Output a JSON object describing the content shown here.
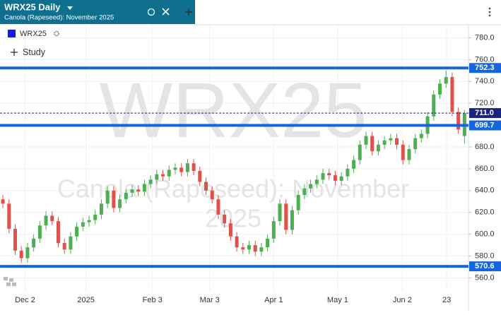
{
  "header": {
    "symbol_title": "WRX25 Daily",
    "subtitle": "Canola (Rapeseed): November 2025",
    "legend_symbol": "WRX25",
    "study_button": "Study"
  },
  "chart_data": {
    "type": "candlestick",
    "watermark": [
      "WRX25",
      "Canola (Rapeseed): November",
      "2025"
    ],
    "open": [
      632,
      628,
      605,
      585,
      578,
      588,
      596,
      608,
      617,
      612,
      592,
      586,
      598,
      607,
      611,
      613,
      618,
      628,
      640,
      624,
      632,
      638,
      641,
      639,
      646,
      650,
      655,
      653,
      659,
      661,
      657,
      665,
      658,
      648,
      640,
      632,
      618,
      610,
      598,
      588,
      586,
      590,
      584,
      588,
      596,
      612,
      628,
      604,
      622,
      636,
      642,
      646,
      650,
      656,
      654,
      649,
      653,
      660,
      668,
      682,
      690,
      676,
      682,
      686,
      688,
      682,
      668,
      678,
      688,
      692,
      708,
      728,
      738,
      744,
      712,
      690
    ],
    "high": [
      636,
      632,
      609,
      589,
      592,
      600,
      612,
      621,
      621,
      616,
      596,
      602,
      611,
      615,
      617,
      622,
      632,
      644,
      644,
      636,
      642,
      645,
      645,
      650,
      654,
      659,
      659,
      663,
      665,
      665,
      669,
      669,
      662,
      652,
      644,
      636,
      622,
      614,
      602,
      592,
      594,
      594,
      592,
      600,
      616,
      632,
      632,
      626,
      640,
      646,
      650,
      654,
      660,
      660,
      658,
      657,
      664,
      672,
      686,
      694,
      694,
      686,
      690,
      692,
      692,
      686,
      682,
      692,
      696,
      712,
      732,
      742,
      750,
      748,
      716,
      714
    ],
    "low": [
      624,
      601,
      581,
      574,
      574,
      584,
      592,
      604,
      608,
      588,
      582,
      582,
      594,
      603,
      607,
      609,
      614,
      624,
      620,
      620,
      628,
      634,
      635,
      635,
      642,
      646,
      649,
      649,
      655,
      653,
      653,
      654,
      644,
      636,
      628,
      614,
      606,
      594,
      584,
      582,
      582,
      580,
      580,
      584,
      592,
      608,
      600,
      600,
      618,
      632,
      638,
      642,
      646,
      650,
      645,
      645,
      649,
      656,
      664,
      678,
      672,
      672,
      678,
      682,
      678,
      664,
      664,
      674,
      684,
      688,
      704,
      724,
      734,
      708,
      692,
      683
    ],
    "close": [
      628,
      605,
      585,
      578,
      588,
      596,
      608,
      617,
      612,
      592,
      586,
      598,
      607,
      611,
      613,
      618,
      628,
      640,
      624,
      632,
      638,
      641,
      639,
      646,
      650,
      655,
      653,
      659,
      661,
      657,
      665,
      658,
      648,
      640,
      632,
      618,
      610,
      598,
      588,
      586,
      590,
      584,
      588,
      596,
      612,
      628,
      604,
      622,
      636,
      642,
      646,
      650,
      656,
      654,
      649,
      653,
      660,
      668,
      682,
      690,
      676,
      682,
      686,
      688,
      682,
      668,
      678,
      688,
      692,
      708,
      728,
      738,
      744,
      712,
      696,
      711
    ],
    "up_color": "#4caf50",
    "down_color": "#e0514a",
    "ylim": [
      548,
      791.3
    ],
    "yticks": [
      {
        "value": 560,
        "label": "560.0"
      },
      {
        "value": 580,
        "label": "580.0"
      },
      {
        "value": 600,
        "label": "600.0"
      },
      {
        "value": 620,
        "label": "620.0"
      },
      {
        "value": 640,
        "label": "640.0"
      },
      {
        "value": 660,
        "label": "660.0"
      },
      {
        "value": 680,
        "label": "680.0"
      },
      {
        "value": 700,
        "label": "700.0"
      },
      {
        "value": 720,
        "label": "720.0"
      },
      {
        "value": 740,
        "label": "740.0"
      },
      {
        "value": 760,
        "label": "760.0"
      },
      {
        "value": 780,
        "label": "780.0"
      }
    ],
    "xlim": [
      -0.47,
      75.65
    ],
    "xticks": [
      {
        "value": 3.6,
        "label": "Dec 2"
      },
      {
        "value": 13.5,
        "label": "2025"
      },
      {
        "value": 24.3,
        "label": "Feb 3"
      },
      {
        "value": 33.6,
        "label": "Mar 3"
      },
      {
        "value": 44,
        "label": "Apr 1"
      },
      {
        "value": 54.4,
        "label": "May 1"
      },
      {
        "value": 64.9,
        "label": "Jun 2"
      },
      {
        "value": 72.1,
        "label": "23"
      }
    ],
    "levels": [
      752.3,
      699.7,
      570.6
    ],
    "level_color": "#1565e0",
    "last_price": {
      "value": 711,
      "label": "711.0"
    },
    "last_price_color": "#1a237e",
    "grid": true
  }
}
